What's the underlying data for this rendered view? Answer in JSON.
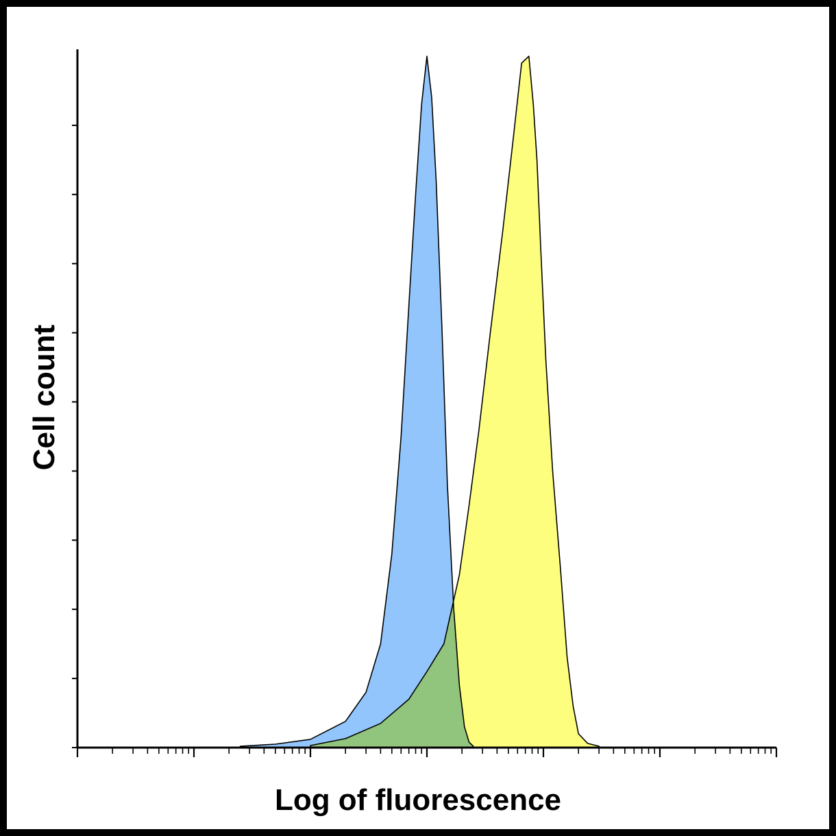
{
  "chart_data": {
    "type": "area",
    "title": "",
    "xlabel": "Log of fluorescence",
    "ylabel": "Cell count",
    "x_scale": "log",
    "xlim": [
      1,
      1000000
    ],
    "ylim": [
      0,
      100
    ],
    "y_ticks": [
      0,
      10,
      20,
      30,
      40,
      50,
      60,
      70,
      80,
      90
    ],
    "grid": false,
    "legend": "none",
    "series": [
      {
        "color": "#92c5fb",
        "edge_color": "#000000",
        "x": [
          25,
          50,
          100,
          200,
          300,
          400,
          500,
          600,
          700,
          800,
          900,
          1000,
          1100,
          1200,
          1350,
          1500,
          1700,
          1900,
          2100,
          2300,
          2500
        ],
        "y": [
          0.2,
          0.5,
          1.2,
          3.8,
          8,
          15,
          28,
          45,
          64,
          80,
          93,
          100,
          94,
          82,
          60,
          38,
          20,
          9,
          3,
          0.8,
          0.2
        ]
      },
      {
        "color": "#fefe7e",
        "edge_color": "#000000",
        "x": [
          100,
          200,
          400,
          700,
          1000,
          1400,
          1900,
          2300,
          2800,
          3500,
          4500,
          5500,
          6500,
          7500,
          8200,
          8800,
          9500,
          10500,
          12000,
          14000,
          16000,
          18000,
          20000,
          24000,
          30000
        ],
        "y": [
          0.3,
          1.3,
          3.5,
          7,
          11,
          15,
          25,
          35,
          46,
          60,
          75,
          88,
          99,
          100,
          93,
          85,
          72,
          56,
          40,
          26,
          13,
          6,
          2,
          0.6,
          0.2
        ]
      }
    ]
  }
}
